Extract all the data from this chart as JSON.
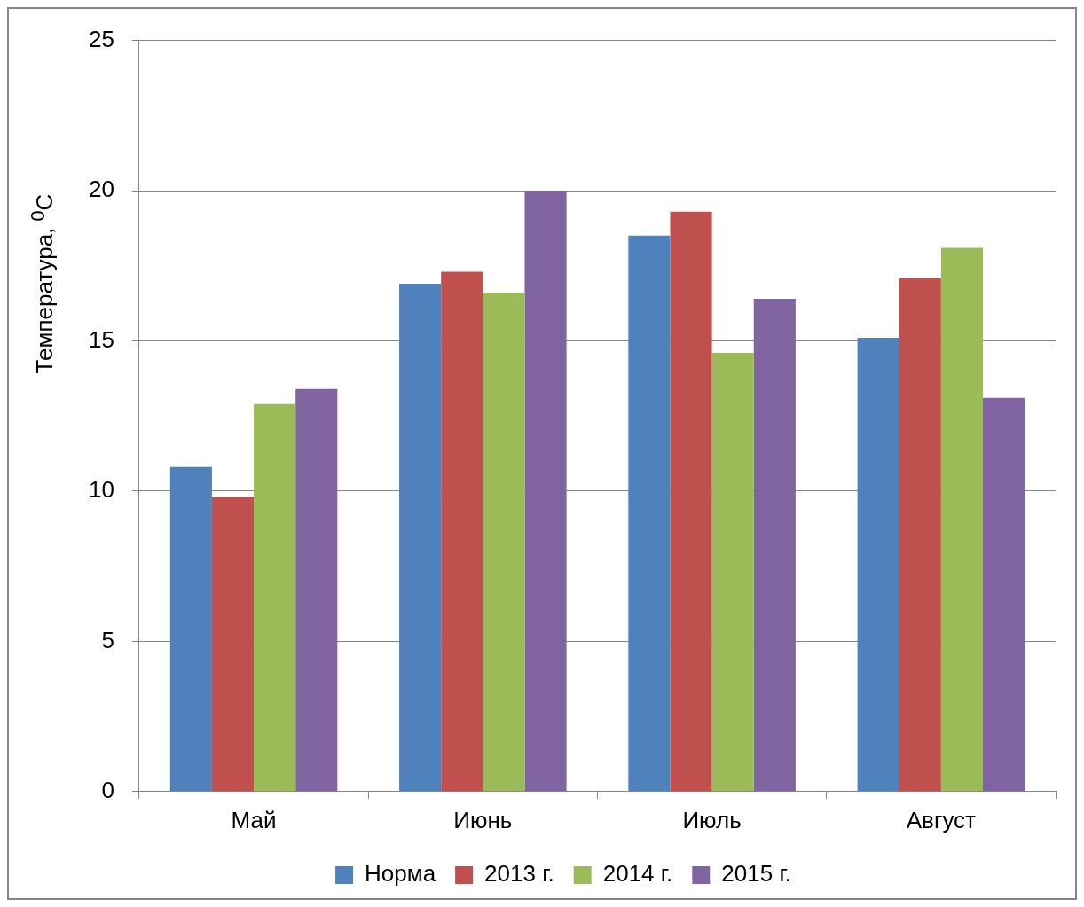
{
  "chart_data": {
    "type": "bar",
    "ylabel": "Температура, $^{0}$С",
    "categories": [
      "Май",
      "Июнь",
      "Июль",
      "Август"
    ],
    "series": [
      {
        "name": "Норма",
        "color": "#4f81bd",
        "values": [
          10.8,
          16.9,
          18.5,
          15.1
        ]
      },
      {
        "name": "2013 г.",
        "color": "#c0504d",
        "values": [
          9.8,
          17.3,
          19.3,
          17.1
        ]
      },
      {
        "name": "2014 г.",
        "color": "#9bbb59",
        "values": [
          12.9,
          16.6,
          14.6,
          18.1
        ]
      },
      {
        "name": "2015 г.",
        "color": "#8064a2",
        "values": [
          13.4,
          20.0,
          16.4,
          13.1
        ]
      }
    ],
    "ylim": [
      0,
      25
    ],
    "yticks": [
      0,
      5,
      10,
      15,
      20,
      25
    ],
    "grid": "y",
    "legend": "bottom"
  }
}
